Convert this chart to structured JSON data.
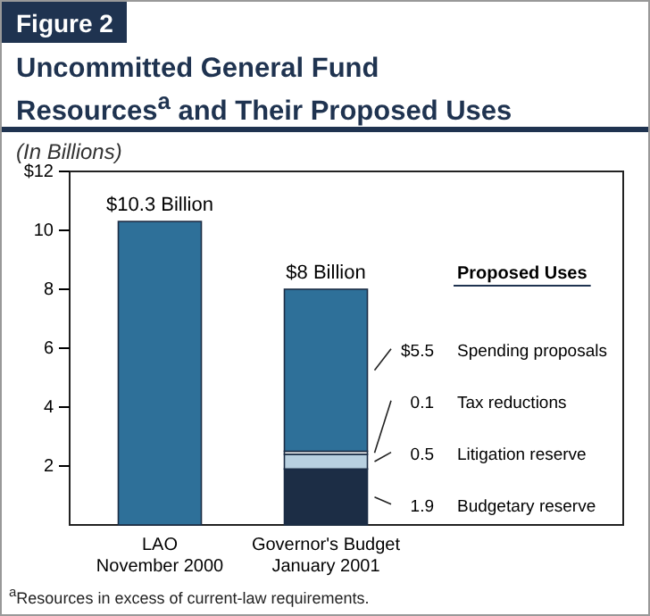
{
  "chart_data": {
    "type": "bar",
    "stacked": true,
    "title": "Uncommitted General Fund Resources$^{a}$ and Their Proposed Uses",
    "subtitle": "(In Billions)",
    "categories": [
      "LAO\nNovember 2000",
      "Governor's Budget\nJanuary 2001"
    ],
    "series": [
      {
        "color": "#2e7099",
        "values": [
          10.3,
          null
        ]
      },
      {
        "name": "Budgetary reserve",
        "color": "#1c2d45",
        "values": [
          null,
          1.9
        ],
        "value_labels": [
          null,
          "1.9"
        ]
      },
      {
        "name": "Litigation reserve",
        "color": "#b8d0e0",
        "values": [
          null,
          0.5
        ],
        "value_labels": [
          null,
          "0.5"
        ]
      },
      {
        "name": "Tax reductions",
        "color": "#ffffff",
        "values": [
          null,
          0.1
        ],
        "value_labels": [
          null,
          "0.1"
        ]
      },
      {
        "name": "Spending proposals",
        "color": "#2e7099",
        "values": [
          null,
          5.5
        ],
        "value_labels": [
          null,
          "$5.5"
        ]
      }
    ],
    "totals": [
      "$10.3 Billion",
      "$8 Billion"
    ],
    "legend": "right",
    "legend_title": "Proposed Uses",
    "ylim": [
      0,
      12
    ],
    "yticks": [
      {
        "value": 2,
        "label": "2"
      },
      {
        "value": 4,
        "label": "4"
      },
      {
        "value": 6,
        "label": "6"
      },
      {
        "value": 8,
        "label": "8"
      },
      {
        "value": 10,
        "label": "10"
      },
      {
        "value": 12,
        "label": "$12"
      }
    ],
    "grid": false,
    "annotations": [
      "Figure 2",
      "$^{a}$Resources in excess of current-law requirements."
    ]
  }
}
